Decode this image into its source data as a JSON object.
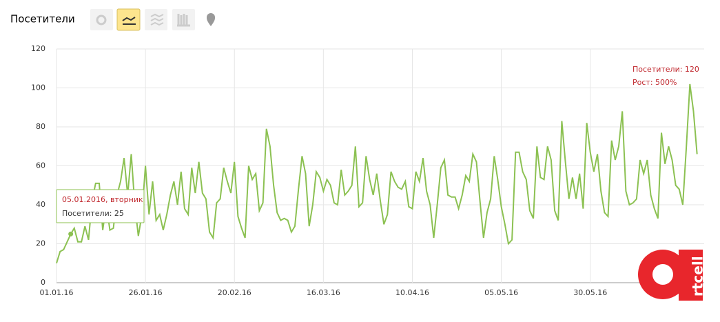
{
  "header": {
    "title": "Посетители"
  },
  "chart_data": {
    "type": "line",
    "categories": [
      "01.01.16",
      null,
      null,
      null,
      null,
      null,
      null,
      null,
      null,
      null,
      null,
      null,
      null,
      null,
      null,
      null,
      null,
      null,
      null,
      null,
      null,
      null,
      null,
      null,
      null,
      "26.01.16",
      null,
      null,
      null,
      null,
      null,
      null,
      null,
      null,
      null,
      null,
      null,
      null,
      null,
      null,
      null,
      null,
      null,
      null,
      null,
      null,
      null,
      null,
      null,
      null,
      "20.02.16",
      null,
      null,
      null,
      null,
      null,
      null,
      null,
      null,
      null,
      null,
      null,
      null,
      null,
      null,
      null,
      null,
      null,
      null,
      null,
      null,
      null,
      null,
      null,
      null,
      "16.03.16",
      null,
      null,
      null,
      null,
      null,
      null,
      null,
      null,
      null,
      null,
      null,
      null,
      null,
      null,
      null,
      null,
      null,
      null,
      null,
      null,
      null,
      null,
      null,
      null,
      "10.04.16",
      null,
      null,
      null,
      null,
      null,
      null,
      null,
      null,
      null,
      null,
      null,
      null,
      null,
      null,
      null,
      null,
      null,
      null,
      null,
      null,
      null,
      null,
      null,
      null,
      "05.05.16",
      null,
      null,
      null,
      null,
      null,
      null,
      null,
      null,
      null,
      null,
      null,
      null,
      null,
      null,
      null,
      null,
      null,
      null,
      null,
      null,
      null,
      null,
      null,
      null,
      "30.05.16",
      null,
      null,
      null,
      null,
      null,
      null,
      null,
      null,
      null,
      null,
      null,
      null,
      null,
      null,
      null,
      null,
      null,
      null,
      null,
      null,
      null,
      null,
      null,
      null,
      null,
      null,
      null,
      null,
      null,
      null
    ],
    "series": [
      {
        "name": "Посетители",
        "color": "#8cc152",
        "values": [
          10,
          16,
          17,
          21,
          25,
          28,
          21,
          21,
          29,
          22,
          42,
          51,
          51,
          27,
          40,
          27,
          28,
          45,
          52,
          64,
          45,
          66,
          40,
          24,
          35,
          60,
          35,
          52,
          32,
          35,
          27,
          35,
          45,
          52,
          40,
          57,
          38,
          35,
          59,
          46,
          62,
          46,
          43,
          26,
          23,
          41,
          43,
          59,
          52,
          46,
          62,
          34,
          28,
          23,
          60,
          53,
          56,
          37,
          41,
          79,
          70,
          50,
          36,
          32,
          33,
          32,
          26,
          29,
          48,
          65,
          56,
          29,
          40,
          57,
          54,
          47,
          53,
          50,
          41,
          40,
          58,
          45,
          47,
          50,
          70,
          39,
          41,
          65,
          53,
          45,
          56,
          42,
          30,
          35,
          57,
          52,
          49,
          48,
          52,
          39,
          38,
          57,
          52,
          64,
          47,
          40,
          23,
          40,
          59,
          63,
          45,
          44,
          44,
          38,
          45,
          55,
          52,
          66,
          62,
          42,
          23,
          36,
          43,
          65,
          53,
          39,
          30,
          20,
          22,
          67,
          67,
          57,
          53,
          37,
          33,
          70,
          54,
          53,
          70,
          63,
          37,
          32,
          83,
          62,
          43,
          54,
          43,
          56,
          38,
          82,
          67,
          57,
          66,
          47,
          36,
          34,
          73,
          63,
          70,
          88,
          47,
          40,
          41,
          43,
          63,
          56,
          63,
          45,
          38,
          33,
          77,
          61,
          70,
          63,
          50,
          48,
          40,
          70,
          102,
          88,
          66
        ]
      }
    ],
    "ylim": [
      0,
      120
    ],
    "yticks": [
      0,
      20,
      40,
      60,
      80,
      100,
      120
    ],
    "grid": true,
    "tooltip": {
      "date": "05.01.2016, вторник",
      "text": "Посетители: 25",
      "point": 4
    },
    "annotation": {
      "line1": "Посетители: 120",
      "line2": "Рост: 500%"
    }
  },
  "watermark": "rtcell"
}
